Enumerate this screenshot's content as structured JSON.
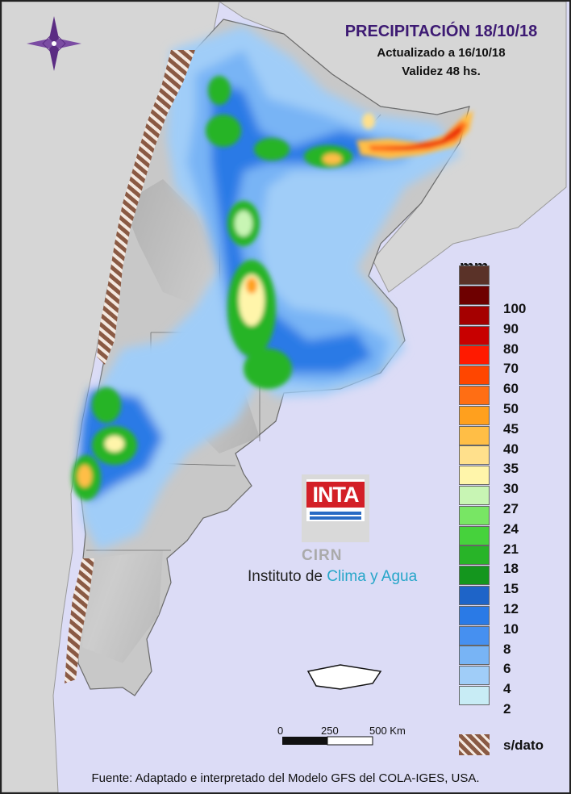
{
  "header": {
    "title": "PRECIPITACIÓN 18/10/18",
    "updated": "Actualizado a 16/10/18",
    "validity": "Validez 48 hs."
  },
  "legend": {
    "unit": "mm",
    "classes": [
      {
        "label": "100",
        "color": "#6e0000"
      },
      {
        "label": "90",
        "color": "#a50000"
      },
      {
        "label": "80",
        "color": "#c80000"
      },
      {
        "label": "70",
        "color": "#ff1a00"
      },
      {
        "label": "60",
        "color": "#ff4600"
      },
      {
        "label": "50",
        "color": "#ff6e14"
      },
      {
        "label": "45",
        "color": "#ffa01e"
      },
      {
        "label": "40",
        "color": "#ffbe46"
      },
      {
        "label": "35",
        "color": "#ffe08c"
      },
      {
        "label": "30",
        "color": "#fff5aa"
      },
      {
        "label": "27",
        "color": "#c8f5b4"
      },
      {
        "label": "24",
        "color": "#78e664"
      },
      {
        "label": "21",
        "color": "#46d23c"
      },
      {
        "label": "18",
        "color": "#28b428"
      },
      {
        "label": "15",
        "color": "#14961e"
      },
      {
        "label": "12",
        "color": "#1e64c8"
      },
      {
        "label": "10",
        "color": "#2a7ae6"
      },
      {
        "label": "8",
        "color": "#4690f0"
      },
      {
        "label": "6",
        "color": "#78b4f5"
      },
      {
        "label": "4",
        "color": "#a0cdf8"
      },
      {
        "label": "2",
        "color": "#c8ecf5"
      }
    ],
    "top_swatch_color": "#5a3228",
    "no_data_label": "s/dato"
  },
  "scale_bar": {
    "ticks": [
      "0",
      "250",
      "500 Km"
    ]
  },
  "logo": {
    "brand": "INTA",
    "center": "CIRN",
    "institute_prefix": "Instituto de",
    "institute_accent": "Clima y Agua"
  },
  "footer": {
    "source": "Fuente: Adaptado e interpretado del Modelo GFS del COLA-IGES, USA."
  },
  "map": {
    "icon": "compass-rose-icon"
  }
}
